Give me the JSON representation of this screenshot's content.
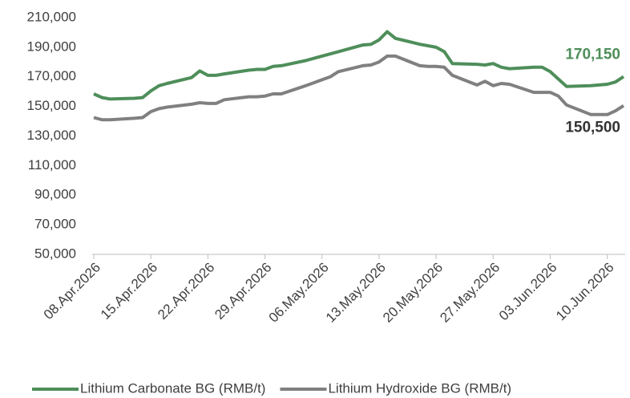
{
  "chart_data": {
    "type": "line",
    "x": [
      "08.Apr.2026",
      "09.Apr.2026",
      "10.Apr.2026",
      "13.Apr.2026",
      "14.Apr.2026",
      "15.Apr.2026",
      "16.Apr.2026",
      "17.Apr.2026",
      "20.Apr.2026",
      "21.Apr.2026",
      "22.Apr.2026",
      "23.Apr.2026",
      "24.Apr.2026",
      "27.Apr.2026",
      "28.Apr.2026",
      "29.Apr.2026",
      "30.Apr.2026",
      "01.May.2026",
      "04.May.2026",
      "05.May.2026",
      "06.May.2026",
      "07.May.2026",
      "08.May.2026",
      "11.May.2026",
      "12.May.2026",
      "13.May.2026",
      "14.May.2026",
      "15.May.2026",
      "18.May.2026",
      "19.May.2026",
      "20.May.2026",
      "21.May.2026",
      "22.May.2026",
      "25.May.2026",
      "26.May.2026",
      "27.May.2026",
      "28.May.2026",
      "29.May.2026",
      "01.Jun.2026",
      "02.Jun.2026",
      "03.Jun.2026",
      "04.Jun.2026",
      "05.Jun.2026",
      "08.Jun.2026",
      "09.Jun.2026",
      "10.Jun.2026",
      "11.Jun.2026",
      "12.Jun.2026"
    ],
    "series": [
      {
        "name": "Lithium Carbonate BG (RMB/t)",
        "color": "#4e8e5a",
        "end_label": "170,150",
        "values": [
          158500,
          156000,
          155000,
          155500,
          156000,
          160500,
          164000,
          165500,
          169500,
          174000,
          171000,
          171000,
          172000,
          174500,
          175000,
          175000,
          177000,
          177500,
          181000,
          182500,
          184000,
          185500,
          187000,
          191500,
          192000,
          195000,
          200500,
          196000,
          192000,
          191000,
          190000,
          187000,
          179000,
          178500,
          178000,
          179000,
          176500,
          175500,
          176500,
          176500,
          173500,
          168500,
          163500,
          164000,
          164500,
          165000,
          166500,
          170150
        ]
      },
      {
        "name": "Lithium Hydroxide BG (RMB/t)",
        "color": "#808080",
        "end_label": "150,500",
        "values": [
          142500,
          141000,
          141000,
          142000,
          142500,
          146500,
          148500,
          149500,
          151500,
          152500,
          152000,
          152000,
          154500,
          156500,
          156500,
          157000,
          158500,
          158500,
          164000,
          166000,
          168000,
          170000,
          173500,
          177500,
          178000,
          180000,
          184000,
          184000,
          177500,
          177000,
          177000,
          176500,
          171000,
          164500,
          167000,
          164000,
          165500,
          165000,
          159500,
          159500,
          159500,
          157000,
          151000,
          144500,
          144500,
          144500,
          147000,
          150500
        ]
      }
    ],
    "xlim": [
      "08.Apr.2026",
      "12.Jun.2026"
    ],
    "xticks": [
      "08.Apr.2026",
      "15.Apr.2026",
      "22.Apr.2026",
      "29.Apr.2026",
      "06.May.2026",
      "13.May.2026",
      "20.May.2026",
      "27.May.2026",
      "03.Jun.2026",
      "10.Jun.2026"
    ],
    "ylim": [
      50000,
      210000
    ],
    "yticks": [
      {
        "value": 50000,
        "label": "50,000"
      },
      {
        "value": 70000,
        "label": "70,000"
      },
      {
        "value": 90000,
        "label": "90,000"
      },
      {
        "value": 110000,
        "label": "110,000"
      },
      {
        "value": 130000,
        "label": "130,000"
      },
      {
        "value": 150000,
        "label": "150,000"
      },
      {
        "value": 170000,
        "label": "170,000"
      },
      {
        "value": 190000,
        "label": "190,000"
      },
      {
        "value": 210000,
        "label": "210,000"
      }
    ],
    "grid": false,
    "legend": "bottom"
  }
}
